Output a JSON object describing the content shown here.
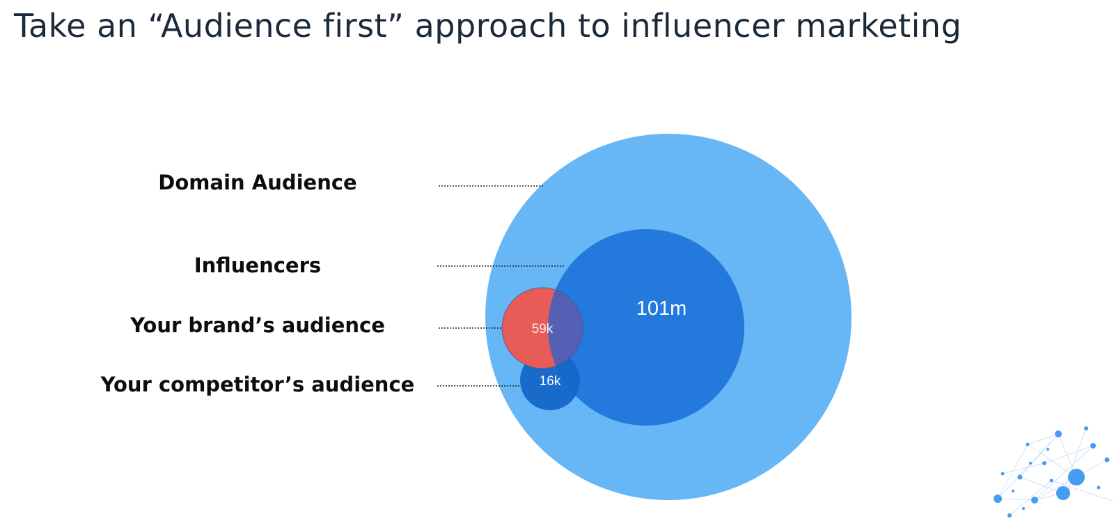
{
  "title": "Take an “Audience first” approach to influencer marketing",
  "labels": {
    "domain": "Domain Audience",
    "influencers": "Influencers",
    "brand": "Your brand’s audience",
    "competitor": "Your competitor’s audience"
  },
  "values": {
    "influencers": "101m",
    "brand": "59k",
    "competitor": "16k"
  },
  "colors": {
    "domain": "#67b6f5",
    "influencers": "#2379dc",
    "brand": "#e85c58",
    "competitor": "#1467c8",
    "overlap": "#5560b4",
    "title": "#1b2a3a",
    "network": "#3a98f0"
  }
}
